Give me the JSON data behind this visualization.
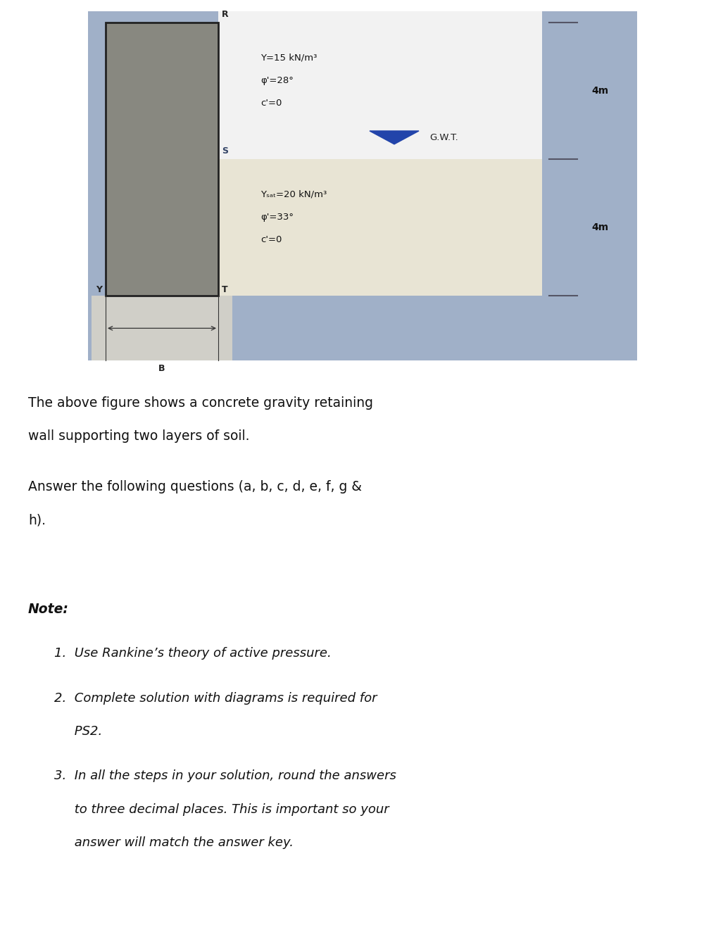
{
  "bg_color": "#ffffff",
  "diagram_bg": "#a0b0c8",
  "wall_color": "#888880",
  "wall_border": "#222222",
  "soil_top_color": "#f2f2f2",
  "soil_bottom_color": "#e8e4d4",
  "base_color": "#d0cfc8",
  "tick_color": "#555566",
  "dim_bg": "#a0b0c8",
  "layer1_text_lines": [
    "Y=15 kN/m³",
    "φ'=28°",
    "c'=0"
  ],
  "layer2_text_lines": [
    "Yₛₐₜ=20 kN/m³",
    "φ'=33°",
    "c'=0"
  ],
  "gwt_label": "G.W.T.",
  "dim_label1": "4m",
  "dim_label2": "4m",
  "point_R": "R",
  "point_S": "S",
  "point_T": "T",
  "point_Y": "Y",
  "point_B": "B",
  "para1_line1": "The above figure shows a concrete gravity retaining",
  "para1_line2": "wall supporting two layers of soil.",
  "para2_line1": "Answer the following questions (a, b, c, d, e, f, g &",
  "para2_line2": "h).",
  "note_label": "Note:",
  "note1": "1.  Use Rankine’s theory of active pressure.",
  "note2_line1": "2.  Complete solution with diagrams is required for",
  "note2_line2": "     PS2.",
  "note3_line1": "3.  In all the steps in your solution, round the answers",
  "note3_line2": "     to three decimal places. This is important so your",
  "note3_line3": "     answer will match the answer key.",
  "text_fontsize": 13.5,
  "note_fontsize": 13.0
}
